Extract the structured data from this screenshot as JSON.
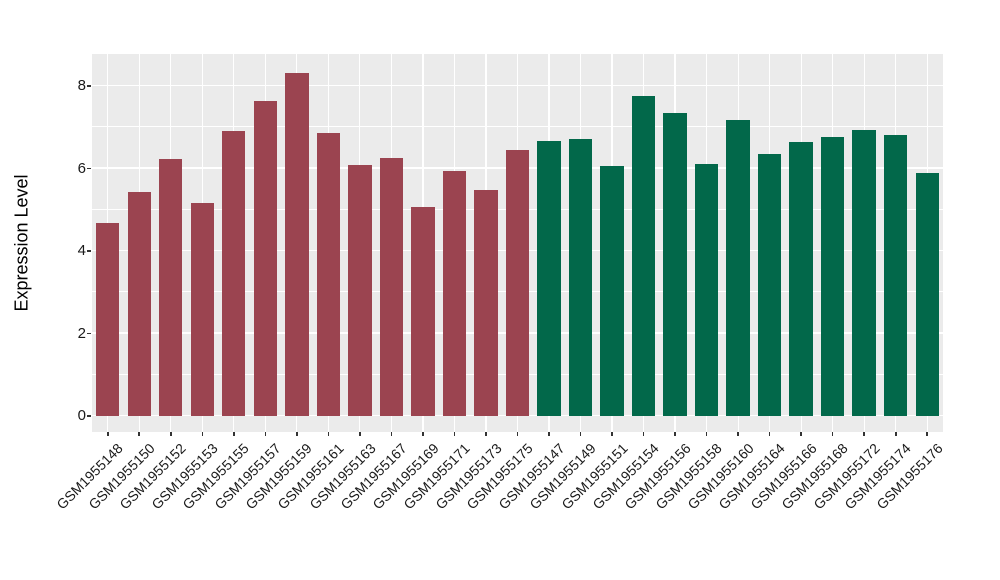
{
  "figure": {
    "background": "#FFFFFF",
    "panel_background": "#EBEBEB",
    "grid_color": "#FFFFFF",
    "axis_text_color": "#1A1A1A",
    "tick_mark_color": "#333333"
  },
  "chart_data": {
    "type": "bar",
    "title": "",
    "xlabel": "",
    "ylabel": "Expression Level",
    "ylim": [
      0,
      8.78
    ],
    "yticks": [
      0,
      2,
      4,
      6,
      8
    ],
    "grid": "on",
    "legend_position": "none",
    "group_colors": {
      "group1": "#9B4450",
      "group2": "#02684A"
    },
    "categories": [
      "GSM1955148",
      "GSM1955150",
      "GSM1955152",
      "GSM1955153",
      "GSM1955155",
      "GSM1955157",
      "GSM1955159",
      "GSM1955161",
      "GSM1955163",
      "GSM1955167",
      "GSM1955169",
      "GSM1955171",
      "GSM1955173",
      "GSM1955175",
      "GSM1955147",
      "GSM1955149",
      "GSM1955151",
      "GSM1955154",
      "GSM1955156",
      "GSM1955158",
      "GSM1955160",
      "GSM1955164",
      "GSM1955166",
      "GSM1955168",
      "GSM1955172",
      "GSM1955174",
      "GSM1955176"
    ],
    "series": [
      {
        "name": "Expression Level",
        "values": [
          4.69,
          5.42,
          6.23,
          5.17,
          6.92,
          7.64,
          8.31,
          6.86,
          6.09,
          6.25,
          5.07,
          5.94,
          5.48,
          6.46,
          6.67,
          6.71,
          6.06,
          7.77,
          7.34,
          6.11,
          7.18,
          6.35,
          6.64,
          6.77,
          6.93,
          6.81,
          5.88
        ],
        "groups": [
          "group1",
          "group1",
          "group1",
          "group1",
          "group1",
          "group1",
          "group1",
          "group1",
          "group1",
          "group1",
          "group1",
          "group1",
          "group1",
          "group1",
          "group2",
          "group2",
          "group2",
          "group2",
          "group2",
          "group2",
          "group2",
          "group2",
          "group2",
          "group2",
          "group2",
          "group2",
          "group2"
        ]
      }
    ]
  }
}
